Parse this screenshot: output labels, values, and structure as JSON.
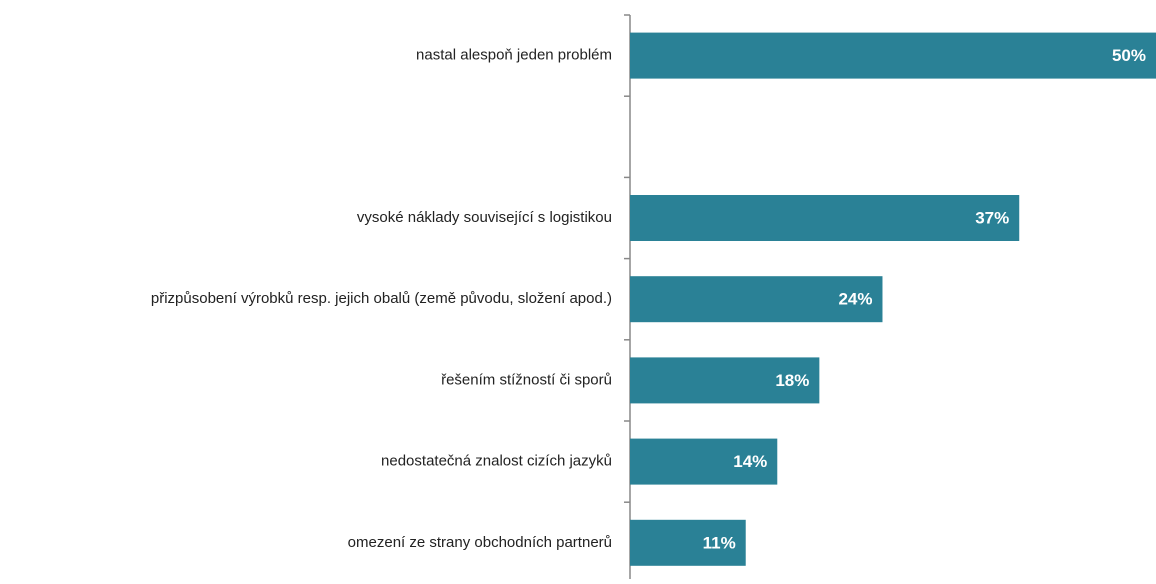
{
  "chart_data": {
    "type": "bar",
    "orientation": "horizontal",
    "categories": [
      "nastal alespoň jeden problém",
      null,
      "vysoké náklady související s logistikou",
      "přizpůsobení výrobků resp. jejich obalů (země původu, složení apod.)",
      "řešením stížností či sporů",
      "nedostatečná znalost cizích jazyků",
      "omezení ze strany obchodních partnerů"
    ],
    "values": [
      50,
      null,
      37,
      24,
      18,
      14,
      11
    ],
    "value_labels": [
      "50%",
      null,
      "37%",
      "24%",
      "18%",
      "14%",
      "11%"
    ],
    "color": "#2a8196",
    "xlim": [
      0,
      50
    ]
  }
}
